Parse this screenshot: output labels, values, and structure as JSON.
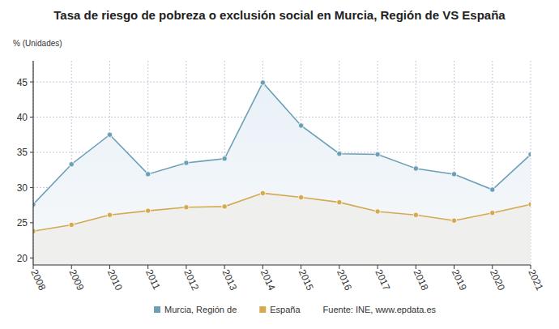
{
  "chart_data": {
    "type": "area",
    "title": "Tasa de riesgo de pobreza o exclusión social en Murcia, Región de VS España",
    "y_label": "% (Unidades)",
    "source": "Fuente: INE, www.epdata.es",
    "categories": [
      "2008",
      "2009",
      "2010",
      "2011",
      "2012",
      "2013",
      "2014",
      "2015",
      "2016",
      "2017",
      "2018",
      "2019",
      "2020",
      "2021"
    ],
    "series": [
      {
        "name": "Murcia, Región de",
        "color": "#6a9fb5",
        "marker": "circle",
        "values": [
          27.6,
          33.3,
          37.5,
          31.9,
          33.5,
          34.1,
          44.9,
          38.8,
          34.8,
          34.7,
          32.7,
          31.9,
          29.7,
          34.7
        ]
      },
      {
        "name": "España",
        "color": "#d4a94f",
        "marker": "circle",
        "values": [
          23.8,
          24.7,
          26.1,
          26.7,
          27.2,
          27.3,
          29.2,
          28.6,
          27.9,
          26.6,
          26.1,
          25.3,
          26.4,
          27.6
        ]
      }
    ],
    "ylim": [
      19,
      48
    ],
    "yticks": [
      20,
      25,
      30,
      35,
      40,
      45
    ],
    "grid": true,
    "legend": "bottom"
  }
}
